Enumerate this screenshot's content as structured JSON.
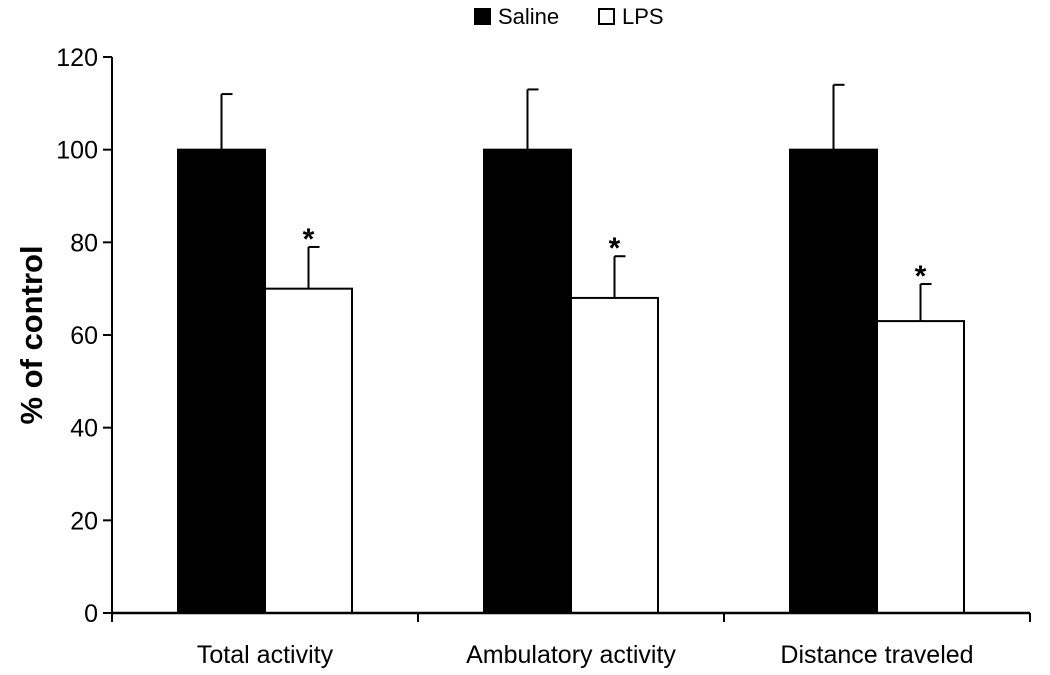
{
  "chart_data": {
    "type": "bar",
    "title": "",
    "xlabel": "",
    "ylabel": "% of control",
    "ylim": [
      0,
      120
    ],
    "yticks": [
      0,
      20,
      40,
      60,
      80,
      100,
      120
    ],
    "grid": false,
    "legend_position": "top-center",
    "categories": [
      "Total activity",
      "Ambulatory activity",
      "Distance traveled"
    ],
    "series": [
      {
        "name": "Saline",
        "color": "#000000",
        "values": [
          100,
          100,
          100
        ],
        "errors": [
          12,
          13,
          14
        ],
        "annotations": [
          "",
          "",
          ""
        ]
      },
      {
        "name": "LPS",
        "color": "#ffffff",
        "values": [
          70,
          68,
          63
        ],
        "errors": [
          9,
          9,
          8
        ],
        "annotations": [
          "*",
          "*",
          "*"
        ]
      }
    ]
  }
}
